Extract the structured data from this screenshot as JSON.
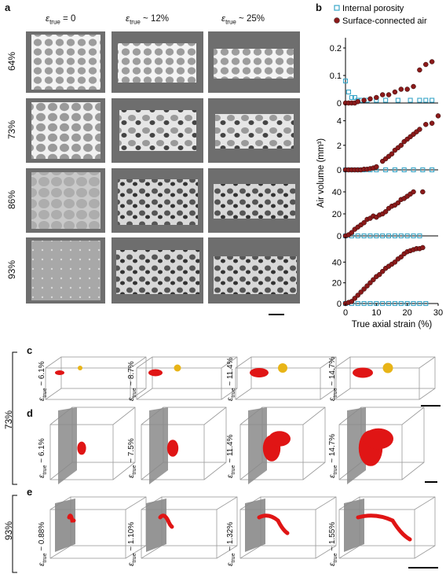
{
  "panel_labels": {
    "a": "a",
    "b": "b",
    "c": "c",
    "d": "d",
    "e": "e"
  },
  "panel_a": {
    "column_headers": [
      {
        "base": "ε",
        "sub": "true",
        "tail": " = 0"
      },
      {
        "base": "ε",
        "sub": "true",
        "tail": " ~ 12%"
      },
      {
        "base": "ε",
        "sub": "true",
        "tail": " ~ 25%"
      }
    ],
    "row_labels": [
      "64%",
      "73%",
      "86%",
      "93%"
    ]
  },
  "panel_c": {
    "strains": [
      {
        "base": "ε",
        "sub": "true",
        "tail": " ~ 6.1%"
      },
      {
        "base": "ε",
        "sub": "true",
        "tail": " ~ 8.7%"
      },
      {
        "base": "ε",
        "sub": "true",
        "tail": " ~ 11.4%"
      },
      {
        "base": "ε",
        "sub": "true",
        "tail": " ~ 14.7%"
      }
    ]
  },
  "panel_d": {
    "strains": [
      {
        "base": "ε",
        "sub": "true",
        "tail": " ~ 6.1%"
      },
      {
        "base": "ε",
        "sub": "true",
        "tail": " ~ 7.5%"
      },
      {
        "base": "ε",
        "sub": "true",
        "tail": " ~ 11.4%"
      },
      {
        "base": "ε",
        "sub": "true",
        "tail": " ~ 14.7%"
      }
    ]
  },
  "panel_e": {
    "strains": [
      {
        "base": "ε",
        "sub": "true",
        "tail": " ~ 0.88%"
      },
      {
        "base": "ε",
        "sub": "true",
        "tail": " ~ 1.10%"
      },
      {
        "base": "ε",
        "sub": "true",
        "tail": " ~ 1.32%"
      },
      {
        "base": "ε",
        "sub": "true",
        "tail": " ~ 1.55%"
      }
    ]
  },
  "group_labels": {
    "cd": "73%",
    "e": "93%"
  },
  "colors": {
    "internal": "#3aa6c8",
    "surface": "#8b1a1a",
    "void_red": "#e01515",
    "void_yellow": "#e8b417",
    "surface_gray": "#8a8a8a"
  },
  "chart_data": {
    "type": "scatter",
    "legend": [
      "Internal porosity",
      "Surface-connected air"
    ],
    "legend_placement": "top",
    "xlabel": "True axial strain (%)",
    "ylabel": "Air volume (mm³)",
    "xlim": [
      0,
      30
    ],
    "x_ticks": [
      0,
      10,
      20,
      30
    ],
    "subplots": [
      {
        "ylim": [
          0,
          0.22
        ],
        "y_ticks": [
          0,
          0.1,
          0.2
        ],
        "series": [
          {
            "name": "Internal porosity",
            "x": [
              0,
              1,
              2,
              3,
              4,
              5,
              7,
              10,
              13,
              17,
              21,
              24,
              26,
              28
            ],
            "y": [
              0.08,
              0.04,
              0.02,
              0.02,
              0.01,
              0.01,
              0.01,
              0.01,
              0.01,
              0.01,
              0.01,
              0.01,
              0.01,
              0.01
            ]
          },
          {
            "name": "Surface-connected air",
            "x": [
              0,
              1,
              2,
              3,
              4,
              6,
              8,
              10,
              12,
              14,
              16,
              18,
              20,
              22,
              24,
              26,
              28
            ],
            "y": [
              0,
              0,
              0,
              0,
              0.005,
              0.01,
              0.015,
              0.02,
              0.03,
              0.03,
              0.04,
              0.05,
              0.05,
              0.06,
              0.12,
              0.14,
              0.15
            ]
          }
        ]
      },
      {
        "ylim": [
          0,
          5
        ],
        "y_ticks": [
          0,
          2,
          4
        ],
        "series": [
          {
            "name": "Internal porosity",
            "x": [
              0,
              2,
              4,
              6,
              8,
              10,
              13,
              16,
              19,
              22,
              25,
              28
            ],
            "y": [
              0,
              0,
              0,
              0,
              0,
              0,
              0,
              0,
              0,
              0,
              0,
              0
            ]
          },
          {
            "name": "Surface-connected air",
            "x": [
              0,
              1,
              2,
              3,
              4,
              5,
              6,
              7,
              8,
              9,
              10,
              12,
              13,
              14,
              15,
              16,
              17,
              18,
              19,
              20,
              21,
              22,
              23,
              24,
              26,
              28,
              30
            ],
            "y": [
              0,
              0,
              0,
              0,
              0,
              0,
              0.05,
              0.05,
              0.1,
              0.15,
              0.25,
              0.7,
              0.9,
              1.1,
              1.3,
              1.6,
              1.8,
              2.0,
              2.3,
              2.5,
              2.7,
              2.9,
              3.1,
              3.3,
              3.7,
              3.8,
              4.4
            ]
          }
        ]
      },
      {
        "ylim": [
          0,
          55
        ],
        "y_ticks": [
          0,
          20,
          40
        ],
        "series": [
          {
            "name": "Internal porosity",
            "x": [
              0,
              2,
              4,
              6,
              8,
              10,
              12,
              14,
              16,
              18,
              20,
              22,
              24
            ],
            "y": [
              0,
              0,
              0,
              0,
              0,
              0,
              0,
              0,
              0,
              0,
              0,
              0,
              0
            ]
          },
          {
            "name": "Surface-connected air",
            "x": [
              0,
              1,
              2,
              3,
              4,
              5,
              6,
              7,
              8,
              9,
              10,
              11,
              12,
              13,
              14,
              15,
              16,
              17,
              18,
              19,
              20,
              21,
              22,
              25
            ],
            "y": [
              0,
              1,
              3,
              6,
              8,
              10,
              12,
              15,
              16,
              18,
              17,
              19,
              20,
              22,
              25,
              27,
              28,
              30,
              33,
              34,
              36,
              38,
              40,
              40
            ]
          }
        ]
      },
      {
        "ylim": [
          0,
          60
        ],
        "y_ticks": [
          0,
          20,
          40
        ],
        "series": [
          {
            "name": "Internal porosity",
            "x": [
              0,
              2,
              4,
              6,
              8,
              10,
              12,
              14,
              16,
              18,
              20,
              22,
              24,
              26
            ],
            "y": [
              0,
              0,
              0,
              0,
              0,
              0,
              0,
              0,
              0,
              0,
              0,
              0,
              0,
              0
            ]
          },
          {
            "name": "Surface-connected air",
            "x": [
              0,
              1,
              2,
              3,
              4,
              5,
              6,
              7,
              8,
              9,
              10,
              11,
              12,
              13,
              14,
              15,
              16,
              17,
              18,
              19,
              20,
              21,
              22,
              23,
              24,
              25
            ],
            "y": [
              0,
              1,
              2,
              5,
              8,
              11,
              14,
              17,
              20,
              23,
              26,
              28,
              31,
              34,
              36,
              38,
              40,
              43,
              45,
              48,
              50,
              51,
              52,
              53,
              53,
              54
            ]
          }
        ]
      }
    ]
  }
}
